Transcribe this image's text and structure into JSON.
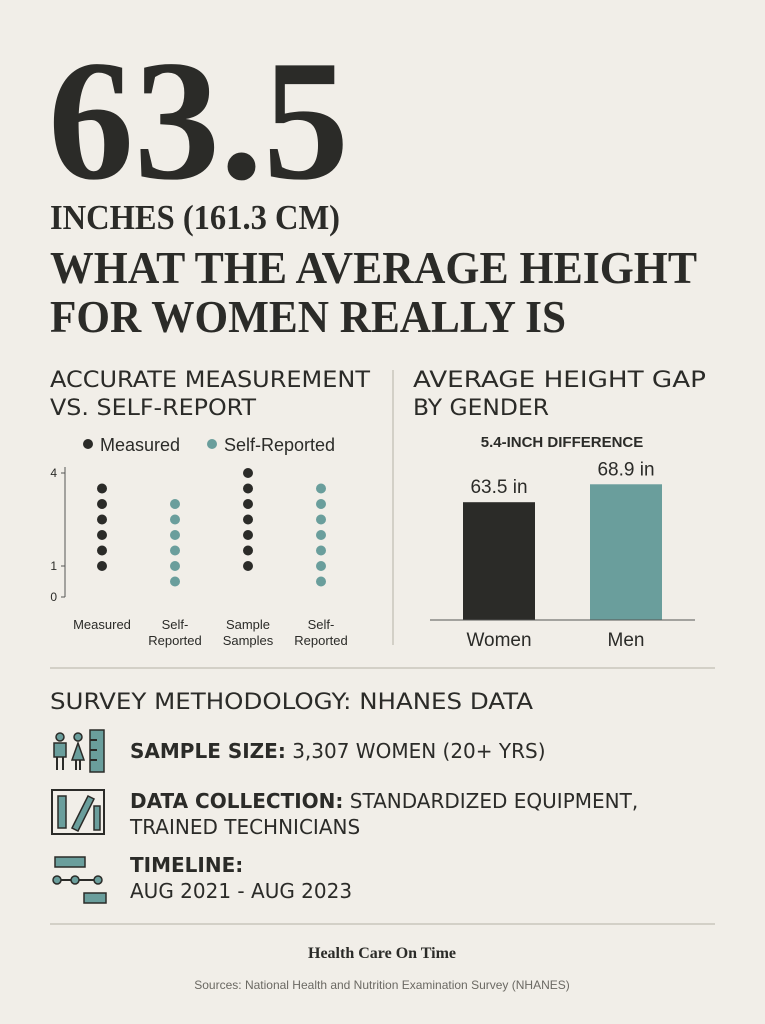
{
  "header": {
    "headline": "63.5",
    "title_lines": [
      "INCHES (161.3 CM)",
      "WHAT THE AVERAGE HEIGHT",
      "FOR WOMEN REALLY IS"
    ]
  },
  "chart_data": [
    {
      "type": "dot",
      "title_lines": [
        "ACCURATE MEASUREMENT",
        "VS. SELF-REPORT"
      ],
      "categories": [
        [
          "Measured"
        ],
        [
          "Self-",
          "Reported"
        ],
        [
          "Sample",
          "Samples"
        ],
        [
          "Self-",
          "Reported"
        ]
      ],
      "series": [
        {
          "name": "Measured",
          "color": "#2b2b28",
          "values": [
            [
              3.5,
              3.0,
              2.5,
              2.0,
              1.5,
              1.0
            ],
            null,
            [
              4.0,
              3.5,
              3.0,
              2.5,
              2.0,
              1.5,
              1.0
            ],
            null
          ]
        },
        {
          "name": "Self-Reported",
          "color": "#6a9e9c",
          "values": [
            null,
            [
              3.0,
              2.5,
              2.0,
              1.5,
              1.0,
              0.5
            ],
            null,
            [
              3.5,
              3.0,
              2.5,
              2.0,
              1.5,
              1.0,
              0.5
            ]
          ]
        }
      ],
      "ylim": [
        0,
        4
      ],
      "yticks": [
        0,
        1,
        4
      ]
    },
    {
      "type": "bar",
      "title_lines": [
        "AVERAGE HEIGHT GAP",
        "BY GENDER"
      ],
      "subtitle": "5.4-INCH DIFFERENCE",
      "categories": [
        "Women",
        "Men"
      ],
      "values": [
        63.5,
        68.9
      ],
      "value_labels": [
        "63.5 in",
        "68.9 in"
      ],
      "colors": [
        "#2b2b28",
        "#6a9e9c"
      ],
      "ylim": [
        28,
        72
      ]
    }
  ],
  "methodology": {
    "title": "SURVEY METHODOLOGY: NHANES DATA",
    "items": [
      {
        "label": "SAMPLE SIZE:",
        "lines": [
          "3,307 WOMEN (20+ YRS)"
        ]
      },
      {
        "label": "DATA COLLECTION:",
        "lines": [
          "STANDARDIZED EQUIPMENT,",
          "TRAINED TECHNICIANS"
        ]
      },
      {
        "label": "TIMELINE:",
        "lines": [
          "AUG 2021 - AUG 2023"
        ]
      }
    ]
  },
  "footer": {
    "brand": "Health Care On Time",
    "sources": "Sources: National Health and Nutrition Examination Survey (NHANES)"
  }
}
